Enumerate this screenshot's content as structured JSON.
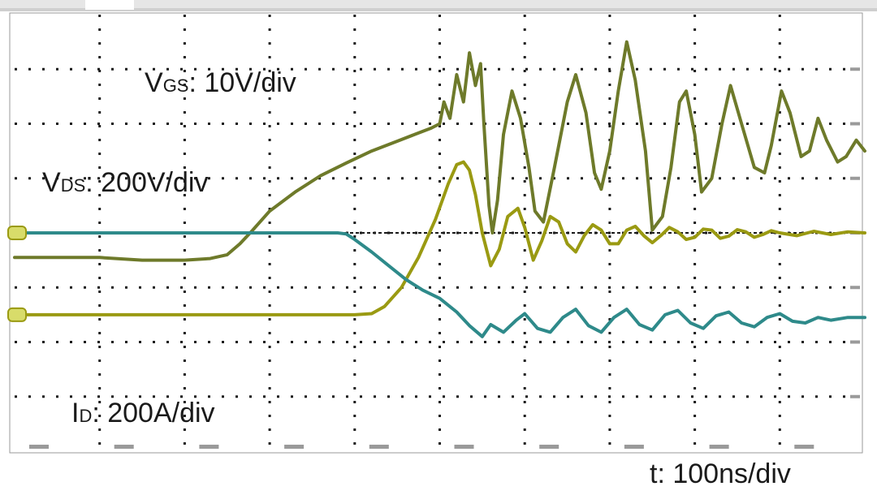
{
  "chart_data": {
    "type": "line",
    "title": "",
    "xlabel": "t: 100ns/div",
    "ylabel": "",
    "grid": true,
    "x_divisions": 10,
    "y_divisions": 8,
    "series": [
      {
        "name": "VGS: 10V/div",
        "label_main": "V",
        "label_sub": "GS",
        "label_rest": ": 10V/div",
        "color": "#6e7a2a",
        "points": [
          [
            0,
            -0.45
          ],
          [
            1,
            -0.45
          ],
          [
            1.5,
            -0.5
          ],
          [
            2,
            -0.5
          ],
          [
            2.3,
            -0.47
          ],
          [
            2.5,
            -0.4
          ],
          [
            2.65,
            -0.2
          ],
          [
            2.8,
            0.05
          ],
          [
            3.0,
            0.4
          ],
          [
            3.3,
            0.75
          ],
          [
            3.6,
            1.05
          ],
          [
            3.9,
            1.28
          ],
          [
            4.2,
            1.5
          ],
          [
            4.5,
            1.68
          ],
          [
            4.7,
            1.8
          ],
          [
            4.9,
            1.92
          ],
          [
            5.0,
            2.0
          ],
          [
            5.05,
            2.4
          ],
          [
            5.12,
            2.1
          ],
          [
            5.2,
            2.9
          ],
          [
            5.28,
            2.4
          ],
          [
            5.35,
            3.3
          ],
          [
            5.42,
            2.7
          ],
          [
            5.48,
            3.1
          ],
          [
            5.52,
            2.0
          ],
          [
            5.58,
            0.5
          ],
          [
            5.62,
            0.0
          ],
          [
            5.68,
            0.6
          ],
          [
            5.75,
            1.8
          ],
          [
            5.85,
            2.6
          ],
          [
            5.95,
            2.1
          ],
          [
            6.05,
            1.2
          ],
          [
            6.12,
            0.4
          ],
          [
            6.22,
            0.2
          ],
          [
            6.35,
            1.2
          ],
          [
            6.5,
            2.4
          ],
          [
            6.6,
            2.9
          ],
          [
            6.72,
            2.2
          ],
          [
            6.82,
            1.1
          ],
          [
            6.9,
            0.8
          ],
          [
            7.0,
            1.5
          ],
          [
            7.1,
            2.6
          ],
          [
            7.2,
            3.5
          ],
          [
            7.3,
            2.8
          ],
          [
            7.42,
            1.5
          ],
          [
            7.5,
            0.05
          ],
          [
            7.62,
            0.3
          ],
          [
            7.72,
            1.2
          ],
          [
            7.82,
            2.4
          ],
          [
            7.9,
            2.6
          ],
          [
            8.0,
            1.8
          ],
          [
            8.08,
            0.75
          ],
          [
            8.2,
            1.0
          ],
          [
            8.32,
            2.0
          ],
          [
            8.42,
            2.7
          ],
          [
            8.55,
            2.0
          ],
          [
            8.7,
            1.2
          ],
          [
            8.82,
            1.1
          ],
          [
            8.9,
            1.6
          ],
          [
            9.02,
            2.6
          ],
          [
            9.12,
            2.2
          ],
          [
            9.25,
            1.4
          ],
          [
            9.35,
            1.5
          ],
          [
            9.45,
            2.1
          ],
          [
            9.55,
            1.7
          ],
          [
            9.68,
            1.3
          ],
          [
            9.78,
            1.4
          ],
          [
            9.9,
            1.7
          ],
          [
            10.0,
            1.5
          ]
        ]
      },
      {
        "name": "VDS: 200V/div",
        "label_main": "V",
        "label_sub": "DS",
        "label_rest": ": 200V/div",
        "color": "#9a9a12",
        "points": [
          [
            0,
            -1.5
          ],
          [
            1,
            -1.5
          ],
          [
            2,
            -1.5
          ],
          [
            3,
            -1.5
          ],
          [
            4.0,
            -1.5
          ],
          [
            4.2,
            -1.48
          ],
          [
            4.35,
            -1.35
          ],
          [
            4.55,
            -1.0
          ],
          [
            4.75,
            -0.45
          ],
          [
            4.95,
            0.25
          ],
          [
            5.1,
            0.9
          ],
          [
            5.2,
            1.25
          ],
          [
            5.28,
            1.3
          ],
          [
            5.35,
            1.15
          ],
          [
            5.42,
            0.7
          ],
          [
            5.5,
            0.0
          ],
          [
            5.6,
            -0.6
          ],
          [
            5.7,
            -0.3
          ],
          [
            5.8,
            0.3
          ],
          [
            5.92,
            0.45
          ],
          [
            6.0,
            0.1
          ],
          [
            6.1,
            -0.5
          ],
          [
            6.2,
            -0.15
          ],
          [
            6.3,
            0.3
          ],
          [
            6.4,
            0.2
          ],
          [
            6.5,
            -0.2
          ],
          [
            6.6,
            -0.35
          ],
          [
            6.7,
            -0.05
          ],
          [
            6.8,
            0.15
          ],
          [
            6.9,
            0.05
          ],
          [
            7.0,
            -0.2
          ],
          [
            7.1,
            -0.2
          ],
          [
            7.2,
            0.05
          ],
          [
            7.3,
            0.12
          ],
          [
            7.4,
            -0.05
          ],
          [
            7.5,
            -0.18
          ],
          [
            7.6,
            -0.05
          ],
          [
            7.7,
            0.1
          ],
          [
            7.8,
            0.02
          ],
          [
            7.9,
            -0.12
          ],
          [
            8.0,
            -0.08
          ],
          [
            8.1,
            0.07
          ],
          [
            8.2,
            0.05
          ],
          [
            8.3,
            -0.1
          ],
          [
            8.4,
            -0.06
          ],
          [
            8.5,
            0.06
          ],
          [
            8.6,
            0.02
          ],
          [
            8.7,
            -0.08
          ],
          [
            8.8,
            -0.03
          ],
          [
            8.9,
            0.04
          ],
          [
            9.0,
            0.0
          ],
          [
            9.2,
            -0.05
          ],
          [
            9.4,
            0.03
          ],
          [
            9.6,
            -0.03
          ],
          [
            9.8,
            0.02
          ],
          [
            10.0,
            0.0
          ]
        ]
      },
      {
        "name": "ID: 200A/div",
        "label_main": "I",
        "label_sub": "D",
        "label_rest": ": 200A/div",
        "color": "#2e8a8a",
        "points": [
          [
            0,
            0
          ],
          [
            1,
            0
          ],
          [
            2,
            0
          ],
          [
            3,
            0
          ],
          [
            3.8,
            0
          ],
          [
            3.9,
            -0.02
          ],
          [
            4.0,
            -0.12
          ],
          [
            4.2,
            -0.35
          ],
          [
            4.4,
            -0.6
          ],
          [
            4.6,
            -0.85
          ],
          [
            4.8,
            -1.05
          ],
          [
            5.0,
            -1.2
          ],
          [
            5.2,
            -1.45
          ],
          [
            5.35,
            -1.7
          ],
          [
            5.5,
            -1.9
          ],
          [
            5.6,
            -1.68
          ],
          [
            5.75,
            -1.82
          ],
          [
            5.9,
            -1.6
          ],
          [
            6.0,
            -1.48
          ],
          [
            6.15,
            -1.75
          ],
          [
            6.3,
            -1.82
          ],
          [
            6.45,
            -1.55
          ],
          [
            6.6,
            -1.4
          ],
          [
            6.75,
            -1.7
          ],
          [
            6.9,
            -1.82
          ],
          [
            7.05,
            -1.55
          ],
          [
            7.2,
            -1.4
          ],
          [
            7.35,
            -1.68
          ],
          [
            7.5,
            -1.78
          ],
          [
            7.65,
            -1.5
          ],
          [
            7.8,
            -1.42
          ],
          [
            7.95,
            -1.65
          ],
          [
            8.1,
            -1.75
          ],
          [
            8.25,
            -1.52
          ],
          [
            8.4,
            -1.45
          ],
          [
            8.55,
            -1.65
          ],
          [
            8.7,
            -1.72
          ],
          [
            8.85,
            -1.55
          ],
          [
            9.0,
            -1.48
          ],
          [
            9.15,
            -1.62
          ],
          [
            9.3,
            -1.65
          ],
          [
            9.45,
            -1.55
          ],
          [
            9.6,
            -1.6
          ],
          [
            9.8,
            -1.55
          ],
          [
            10.0,
            -1.55
          ]
        ]
      }
    ]
  }
}
